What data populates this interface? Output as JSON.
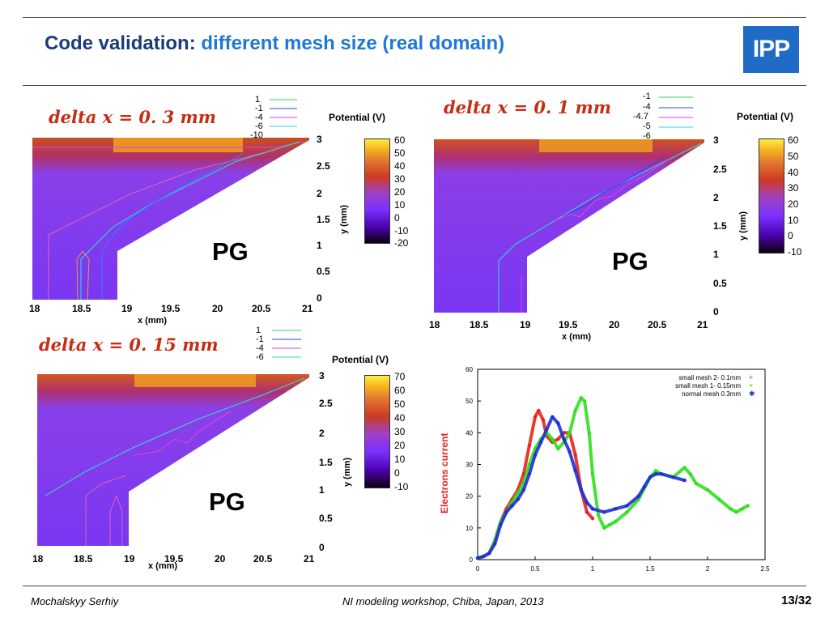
{
  "header": {
    "title_prefix": "Code validation:",
    "title_highlight": "different mesh size (real domain)",
    "logo_text": "IPP"
  },
  "footer": {
    "author": "Mochalskyy Serhiy",
    "event": "NI modeling workshop,  Chiba, Japan, 2013",
    "page": "13/32"
  },
  "panels": [
    {
      "delta_label": "delta x = 0. 3 mm",
      "pg_label": "PG",
      "legend": [
        "1",
        "-1",
        "-4",
        "-6",
        "-10"
      ],
      "colorbar_title": "Potential (V)",
      "colorbar_ticks": [
        "60",
        "50",
        "40",
        "30",
        "20",
        "10",
        "0",
        "-10",
        "-20"
      ],
      "xlabel": "x (mm)",
      "ylabel": "y (mm)",
      "x_ticks": [
        "18",
        "18.5",
        "19",
        "19.5",
        "20",
        "20.5",
        "21"
      ],
      "y_ticks": [
        "3",
        "2.5",
        "2",
        "1.5",
        "1",
        "0.5",
        "0"
      ]
    },
    {
      "delta_label": "delta x = 0. 1 mm",
      "pg_label": "PG",
      "legend": [
        "-1",
        "-4",
        "-4.7",
        "-5",
        "-6"
      ],
      "colorbar_title": "Potential (V)",
      "colorbar_ticks": [
        "60",
        "50",
        "40",
        "30",
        "20",
        "10",
        "0",
        "-10"
      ],
      "xlabel": "x (mm)",
      "ylabel": "y (mm)",
      "x_ticks": [
        "18",
        "18.5",
        "19",
        "19.5",
        "20",
        "20.5",
        "21"
      ],
      "y_ticks": [
        "3",
        "2.5",
        "2",
        "1.5",
        "1",
        "0.5",
        "0"
      ]
    },
    {
      "delta_label": "delta x = 0. 15 mm",
      "pg_label": "PG",
      "legend": [
        "1",
        "-1",
        "-4",
        "-6"
      ],
      "colorbar_title": "Potential (V)",
      "colorbar_ticks": [
        "70",
        "60",
        "50",
        "40",
        "30",
        "20",
        "10",
        "0",
        "-10"
      ],
      "xlabel": "x (mm)",
      "ylabel": "y (mm)",
      "x_ticks": [
        "18",
        "18.5",
        "19",
        "19.5",
        "20",
        "20.5",
        "21"
      ],
      "y_ticks": [
        "3",
        "2.5",
        "2",
        "1.5",
        "1",
        "0.5",
        "0"
      ]
    }
  ],
  "chart_data": {
    "type": "scatter",
    "ylabel": "Electrons current",
    "xlabel": "",
    "xlim": [
      0,
      2.5
    ],
    "ylim": [
      0,
      60
    ],
    "x_ticks": [
      "0",
      "0.5",
      "1",
      "1.5",
      "2",
      "2.5"
    ],
    "y_ticks": [
      "0",
      "10",
      "20",
      "30",
      "40",
      "50",
      "60"
    ],
    "legend_position": "top-right",
    "series": [
      {
        "name": "small mesh 2- 0.1mm",
        "color": "#e8231b",
        "points": [
          [
            0,
            0.5
          ],
          [
            0.05,
            1
          ],
          [
            0.1,
            2
          ],
          [
            0.15,
            6
          ],
          [
            0.2,
            12
          ],
          [
            0.25,
            16
          ],
          [
            0.3,
            19
          ],
          [
            0.35,
            22
          ],
          [
            0.4,
            27
          ],
          [
            0.45,
            36
          ],
          [
            0.5,
            45
          ],
          [
            0.53,
            47
          ],
          [
            0.57,
            44
          ],
          [
            0.6,
            39
          ],
          [
            0.65,
            37
          ],
          [
            0.7,
            38
          ],
          [
            0.75,
            40
          ],
          [
            0.8,
            40
          ],
          [
            0.85,
            33
          ],
          [
            0.9,
            22
          ],
          [
            0.95,
            15
          ],
          [
            1.0,
            13
          ]
        ]
      },
      {
        "name": "small mesh 1- 0.15mm",
        "color": "#2fe01f",
        "points": [
          [
            0,
            0.5
          ],
          [
            0.05,
            1
          ],
          [
            0.1,
            2
          ],
          [
            0.15,
            6
          ],
          [
            0.2,
            12
          ],
          [
            0.25,
            15
          ],
          [
            0.3,
            18
          ],
          [
            0.35,
            21
          ],
          [
            0.4,
            24
          ],
          [
            0.45,
            30
          ],
          [
            0.5,
            35
          ],
          [
            0.55,
            38
          ],
          [
            0.6,
            40
          ],
          [
            0.65,
            38
          ],
          [
            0.7,
            35
          ],
          [
            0.75,
            37
          ],
          [
            0.8,
            40
          ],
          [
            0.85,
            47
          ],
          [
            0.9,
            51
          ],
          [
            0.93,
            50
          ],
          [
            0.97,
            40
          ],
          [
            1.0,
            27
          ],
          [
            1.05,
            14
          ],
          [
            1.1,
            10
          ],
          [
            1.15,
            11
          ],
          [
            1.2,
            12
          ],
          [
            1.3,
            15
          ],
          [
            1.4,
            19
          ],
          [
            1.5,
            26
          ],
          [
            1.55,
            28
          ],
          [
            1.6,
            27
          ],
          [
            1.7,
            26
          ],
          [
            1.8,
            29
          ],
          [
            1.85,
            27
          ],
          [
            1.9,
            24
          ],
          [
            2.0,
            22
          ],
          [
            2.1,
            19
          ],
          [
            2.2,
            16
          ],
          [
            2.25,
            15
          ],
          [
            2.3,
            16
          ],
          [
            2.35,
            17
          ]
        ]
      },
      {
        "name": "normal mesh 0.3mm",
        "color": "#1f2fd6",
        "points": [
          [
            0,
            0.5
          ],
          [
            0.05,
            1
          ],
          [
            0.1,
            2
          ],
          [
            0.15,
            5
          ],
          [
            0.2,
            11
          ],
          [
            0.25,
            15
          ],
          [
            0.3,
            17
          ],
          [
            0.35,
            19
          ],
          [
            0.4,
            22
          ],
          [
            0.45,
            27
          ],
          [
            0.5,
            33
          ],
          [
            0.55,
            37
          ],
          [
            0.6,
            41
          ],
          [
            0.65,
            45
          ],
          [
            0.7,
            43
          ],
          [
            0.75,
            38
          ],
          [
            0.8,
            34
          ],
          [
            0.85,
            28
          ],
          [
            0.9,
            22
          ],
          [
            0.95,
            18
          ],
          [
            1.0,
            16
          ],
          [
            1.1,
            15
          ],
          [
            1.2,
            16
          ],
          [
            1.3,
            17
          ],
          [
            1.4,
            20
          ],
          [
            1.45,
            23
          ],
          [
            1.5,
            26
          ],
          [
            1.55,
            27
          ],
          [
            1.6,
            27
          ],
          [
            1.7,
            26
          ],
          [
            1.8,
            25
          ]
        ]
      }
    ]
  }
}
